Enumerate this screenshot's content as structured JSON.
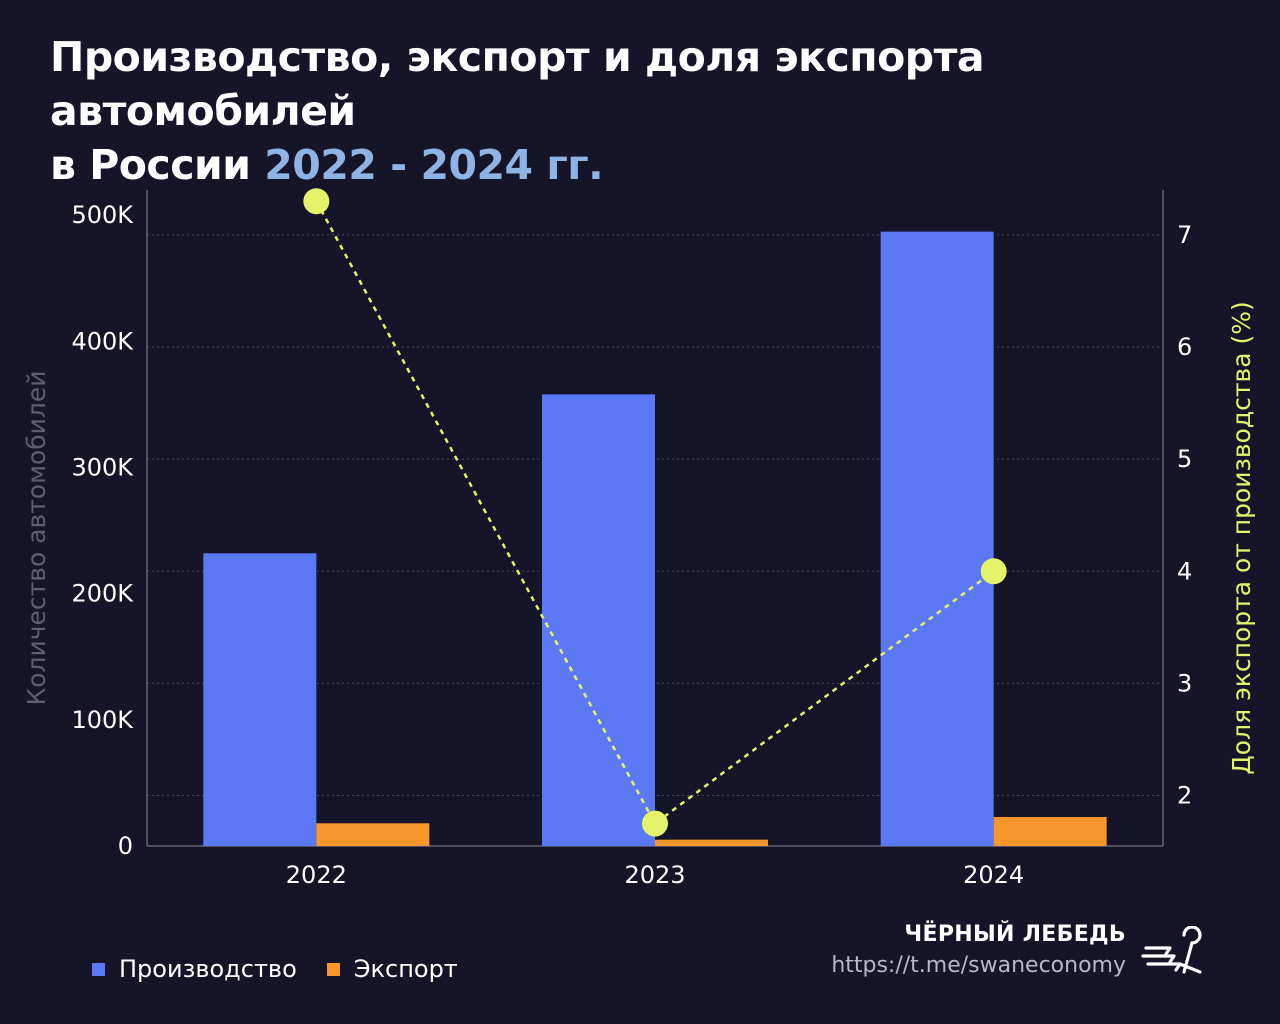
{
  "title": {
    "line1": "Производство, экспорт и доля экспорта автомобилей",
    "line2_prefix": "в России ",
    "line2_accent": "2022 - 2024 гг."
  },
  "chart_data": {
    "type": "bar",
    "categories": [
      "2022",
      "2023",
      "2024"
    ],
    "series": [
      {
        "name": "Производство",
        "kind": "bar",
        "axis": "left",
        "color": "#5b79f5",
        "values": [
          232000,
          358000,
          487000
        ]
      },
      {
        "name": "Экспорт",
        "kind": "bar",
        "axis": "left",
        "color": "#f7962b",
        "values": [
          18000,
          5000,
          23000
        ]
      },
      {
        "kind": "line",
        "axis": "right",
        "color": "#e4f36a",
        "style": "dashed",
        "values": [
          7.3,
          1.75,
          4.0
        ]
      }
    ],
    "ylabel": "Количество автомобилей",
    "ylabel_right": "Доля экспорта от производства (%)",
    "y_ticks": [
      "0",
      "100K",
      "200K",
      "300K",
      "400K",
      "500K"
    ],
    "y_tick_values": [
      0,
      100000,
      200000,
      300000,
      400000,
      500000
    ],
    "ylim": [
      0,
      520000
    ],
    "y2_ticks": [
      "2",
      "3",
      "4",
      "5",
      "6",
      "7"
    ],
    "y2_tick_values": [
      2,
      3,
      4,
      5,
      6,
      7
    ],
    "y2lim": [
      1.55,
      7.4
    ],
    "grid": true,
    "legend_position": "bottom-left"
  },
  "legend": {
    "items": [
      {
        "label": "Производство",
        "color": "#5b79f5"
      },
      {
        "label": "Экспорт",
        "color": "#f7962b"
      }
    ]
  },
  "brand": {
    "name": "ЧЁРНЫЙ ЛЕБЕДЬ",
    "url": "https://t.me/swaneconomy",
    "logo_icon": "swan-logo-icon"
  },
  "colors": {
    "background": "#151428",
    "accent": "#8fb3e3",
    "axis_text": "#ffffff",
    "ylabel_left": "#5e5e72",
    "ylabel_right": "#e4f36a",
    "grid": "#4a4a5e"
  }
}
